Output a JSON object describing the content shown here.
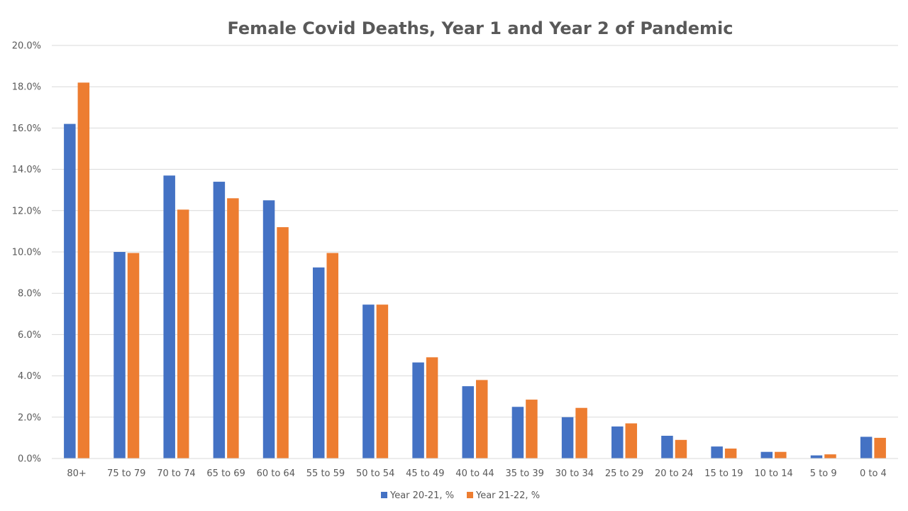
{
  "chart_data": {
    "type": "bar",
    "title": "Female Covid Deaths, Year 1 and Year 2 of Pandemic",
    "xlabel": "",
    "ylabel": "",
    "ylim": [
      0,
      20
    ],
    "y_ticks": [
      "0.0%",
      "2.0%",
      "4.0%",
      "6.0%",
      "8.0%",
      "10.0%",
      "12.0%",
      "14.0%",
      "16.0%",
      "18.0%",
      "20.0%"
    ],
    "grid": true,
    "legend_position": "bottom",
    "categories": [
      "80+",
      "75 to 79",
      "70 to 74",
      "65 to 69",
      "60 to 64",
      "55 to 59",
      "50 to 54",
      "45 to 49",
      "40 to 44",
      "35 to 39",
      "30 to 34",
      "25 to 29",
      "20 to 24",
      "15 to 19",
      "10 to 14",
      "5 to 9",
      "0 to 4"
    ],
    "series": [
      {
        "name": "Year 20-21, %",
        "color": "#4472C4",
        "values": [
          16.2,
          10.0,
          13.7,
          13.4,
          12.5,
          9.25,
          7.45,
          4.65,
          3.5,
          2.5,
          2.0,
          1.55,
          1.1,
          0.58,
          0.32,
          0.15,
          1.05
        ]
      },
      {
        "name": "Year 21-22, %",
        "color": "#ED7D31",
        "values": [
          18.2,
          9.95,
          12.05,
          12.6,
          11.2,
          9.95,
          7.45,
          4.9,
          3.8,
          2.85,
          2.45,
          1.7,
          0.9,
          0.48,
          0.32,
          0.2,
          1.0
        ]
      }
    ]
  }
}
